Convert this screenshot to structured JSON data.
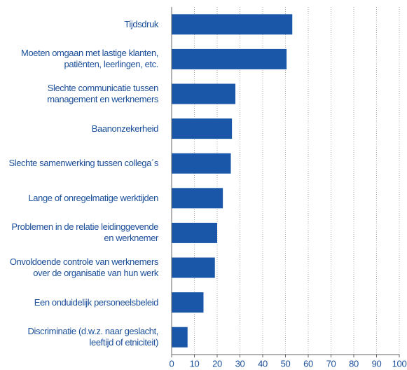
{
  "chart_data": {
    "type": "barh",
    "categories": [
      "Tijdsdruk",
      "Moeten omgaan met lastige klanten,\npatiënten, leerlingen, etc.",
      "Slechte communicatie tussen\nmanagement en werknemers",
      "Baanonzekerheid",
      "Slechte samenwerking tussen collega´s",
      "Lange of onregelmatige werktijden",
      "Problemen in de relatie leidinggevende\nen werknemer",
      "Onvoldoende controle van werknemers\nover de organisatie van hun werk",
      "Een onduidelijk personeelsbeleid",
      "Discriminatie (d.w.z. naar geslacht,\nleeftijd of etniciteit)"
    ],
    "values": [
      53,
      50.5,
      28,
      26.5,
      26,
      22.5,
      20,
      19,
      14,
      7
    ],
    "color": "#1b57a8",
    "xlim": [
      0,
      100
    ],
    "xticks": [
      0,
      10,
      20,
      30,
      40,
      50,
      60,
      70,
      80,
      90,
      100
    ],
    "grid": true
  }
}
